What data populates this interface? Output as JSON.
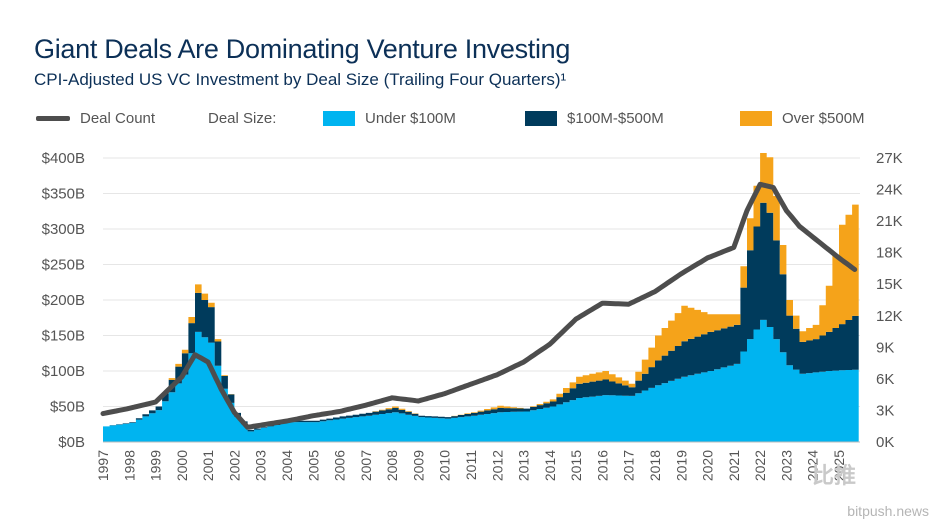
{
  "header": {
    "title": "Giant Deals Are Dominating Venture Investing",
    "subtitle": "CPI-Adjusted US VC Investment by Deal Size (Trailing Four Quarters)¹"
  },
  "legend": {
    "deal_count": "Deal Count",
    "deal_size_label": "Deal Size:",
    "under": "Under $100M",
    "mid": "$100M-$500M",
    "over": "Over $500M"
  },
  "colors": {
    "under": "#00b4f0",
    "mid": "#003b5c",
    "over": "#f5a31a",
    "line": "#4d4d4d"
  },
  "watermark": {
    "brand": "bitpush.news",
    "cn": "比推"
  },
  "chart_data": {
    "type": "area",
    "x_years": [
      1997,
      1998,
      1999,
      2000,
      2001,
      2002,
      2003,
      2004,
      2005,
      2006,
      2007,
      2008,
      2009,
      2010,
      2011,
      2012,
      2013,
      2014,
      2015,
      2016,
      2017,
      2018,
      2019,
      2020,
      2021,
      2022,
      2023,
      2024,
      2025
    ],
    "left_axis": {
      "ylim": [
        0,
        400
      ],
      "ticks": [
        "$0B",
        "$50B",
        "$100B",
        "$150B",
        "$200B",
        "$250B",
        "$300B",
        "$350B",
        "$400B"
      ]
    },
    "right_axis": {
      "ylim": [
        0,
        27000
      ],
      "ticks": [
        "0K",
        "3K",
        "6K",
        "9K",
        "12K",
        "15K",
        "18K",
        "21K",
        "24K",
        "27K"
      ]
    },
    "series": [
      {
        "name": "Under $100M",
        "unit": "$B",
        "points": [
          [
            1997,
            22
          ],
          [
            1998,
            27
          ],
          [
            1999,
            45
          ],
          [
            2000,
            95
          ],
          [
            2000.5,
            155
          ],
          [
            2001,
            140
          ],
          [
            2001.5,
            75
          ],
          [
            2002,
            35
          ],
          [
            2002.5,
            15
          ],
          [
            2003,
            20
          ],
          [
            2004,
            28
          ],
          [
            2005,
            28
          ],
          [
            2006,
            33
          ],
          [
            2007,
            37
          ],
          [
            2008,
            42
          ],
          [
            2009,
            35
          ],
          [
            2010,
            33
          ],
          [
            2011,
            37
          ],
          [
            2012,
            42
          ],
          [
            2013,
            43
          ],
          [
            2014,
            50
          ],
          [
            2015,
            62
          ],
          [
            2016,
            66
          ],
          [
            2017,
            65
          ],
          [
            2018,
            80
          ],
          [
            2019,
            92
          ],
          [
            2020,
            100
          ],
          [
            2021,
            110
          ],
          [
            2021.5,
            145
          ],
          [
            2022,
            172
          ],
          [
            2022.3,
            160
          ],
          [
            2022.7,
            130
          ],
          [
            2023,
            108
          ],
          [
            2023.5,
            96
          ],
          [
            2024,
            98
          ],
          [
            2024.5,
            100
          ],
          [
            2025,
            101
          ],
          [
            2025.6,
            102
          ]
        ]
      },
      {
        "name": "$100M-$500M",
        "unit": "$B",
        "points": [
          [
            1997,
            0
          ],
          [
            1998,
            1
          ],
          [
            1999,
            5
          ],
          [
            2000,
            30
          ],
          [
            2000.5,
            55
          ],
          [
            2001,
            50
          ],
          [
            2001.5,
            18
          ],
          [
            2002,
            6
          ],
          [
            2002.5,
            2
          ],
          [
            2003,
            1
          ],
          [
            2004,
            2
          ],
          [
            2005,
            2
          ],
          [
            2006,
            3
          ],
          [
            2007,
            4
          ],
          [
            2008,
            6
          ],
          [
            2009,
            2
          ],
          [
            2010,
            2
          ],
          [
            2011,
            4
          ],
          [
            2012,
            6
          ],
          [
            2013,
            4
          ],
          [
            2014,
            7
          ],
          [
            2015,
            20
          ],
          [
            2016,
            22
          ],
          [
            2017,
            12
          ],
          [
            2018,
            35
          ],
          [
            2019,
            50
          ],
          [
            2020,
            55
          ],
          [
            2021,
            55
          ],
          [
            2021.5,
            125
          ],
          [
            2022,
            165
          ],
          [
            2022.3,
            160
          ],
          [
            2022.7,
            118
          ],
          [
            2023,
            70
          ],
          [
            2023.5,
            45
          ],
          [
            2024,
            47
          ],
          [
            2024.5,
            55
          ],
          [
            2025,
            65
          ],
          [
            2025.6,
            78
          ]
        ]
      },
      {
        "name": "Over $500M",
        "unit": "$B",
        "points": [
          [
            1997,
            0
          ],
          [
            1998,
            0
          ],
          [
            1999,
            0
          ],
          [
            2000,
            5
          ],
          [
            2000.5,
            12
          ],
          [
            2001,
            6
          ],
          [
            2001.5,
            1
          ],
          [
            2002,
            0
          ],
          [
            2002.5,
            0
          ],
          [
            2003,
            0
          ],
          [
            2004,
            0
          ],
          [
            2005,
            0
          ],
          [
            2006,
            0
          ],
          [
            2007,
            0
          ],
          [
            2008,
            2
          ],
          [
            2009,
            0
          ],
          [
            2010,
            0
          ],
          [
            2011,
            1
          ],
          [
            2012,
            3
          ],
          [
            2013,
            0
          ],
          [
            2014,
            3
          ],
          [
            2015,
            10
          ],
          [
            2016,
            12
          ],
          [
            2017,
            5
          ],
          [
            2018,
            35
          ],
          [
            2019,
            50
          ],
          [
            2020,
            25
          ],
          [
            2021,
            15
          ],
          [
            2021.5,
            45
          ],
          [
            2022,
            70
          ],
          [
            2022.3,
            80
          ],
          [
            2022.7,
            45
          ],
          [
            2023,
            22
          ],
          [
            2023.5,
            15
          ],
          [
            2024,
            20
          ],
          [
            2024.5,
            65
          ],
          [
            2025,
            140
          ],
          [
            2025.6,
            160
          ]
        ]
      },
      {
        "name": "Deal Count",
        "unit": "count",
        "points": [
          [
            1997,
            2700
          ],
          [
            1998,
            3200
          ],
          [
            1999,
            3800
          ],
          [
            2000,
            6200
          ],
          [
            2000.5,
            8300
          ],
          [
            2001,
            7600
          ],
          [
            2001.5,
            5000
          ],
          [
            2002,
            2800
          ],
          [
            2002.5,
            1400
          ],
          [
            2003,
            1600
          ],
          [
            2004,
            2000
          ],
          [
            2005,
            2500
          ],
          [
            2006,
            2900
          ],
          [
            2007,
            3500
          ],
          [
            2008,
            4200
          ],
          [
            2009,
            3900
          ],
          [
            2010,
            4600
          ],
          [
            2011,
            5500
          ],
          [
            2012,
            6400
          ],
          [
            2013,
            7600
          ],
          [
            2014,
            9300
          ],
          [
            2015,
            11700
          ],
          [
            2016,
            13200
          ],
          [
            2017,
            13100
          ],
          [
            2018,
            14300
          ],
          [
            2019,
            16000
          ],
          [
            2020,
            17500
          ],
          [
            2021,
            18500
          ],
          [
            2021.5,
            22000
          ],
          [
            2022,
            24500
          ],
          [
            2022.5,
            24200
          ],
          [
            2023,
            22000
          ],
          [
            2023.5,
            20500
          ],
          [
            2024,
            19500
          ],
          [
            2024.5,
            18500
          ],
          [
            2025,
            17500
          ],
          [
            2025.6,
            16400
          ]
        ]
      }
    ]
  }
}
